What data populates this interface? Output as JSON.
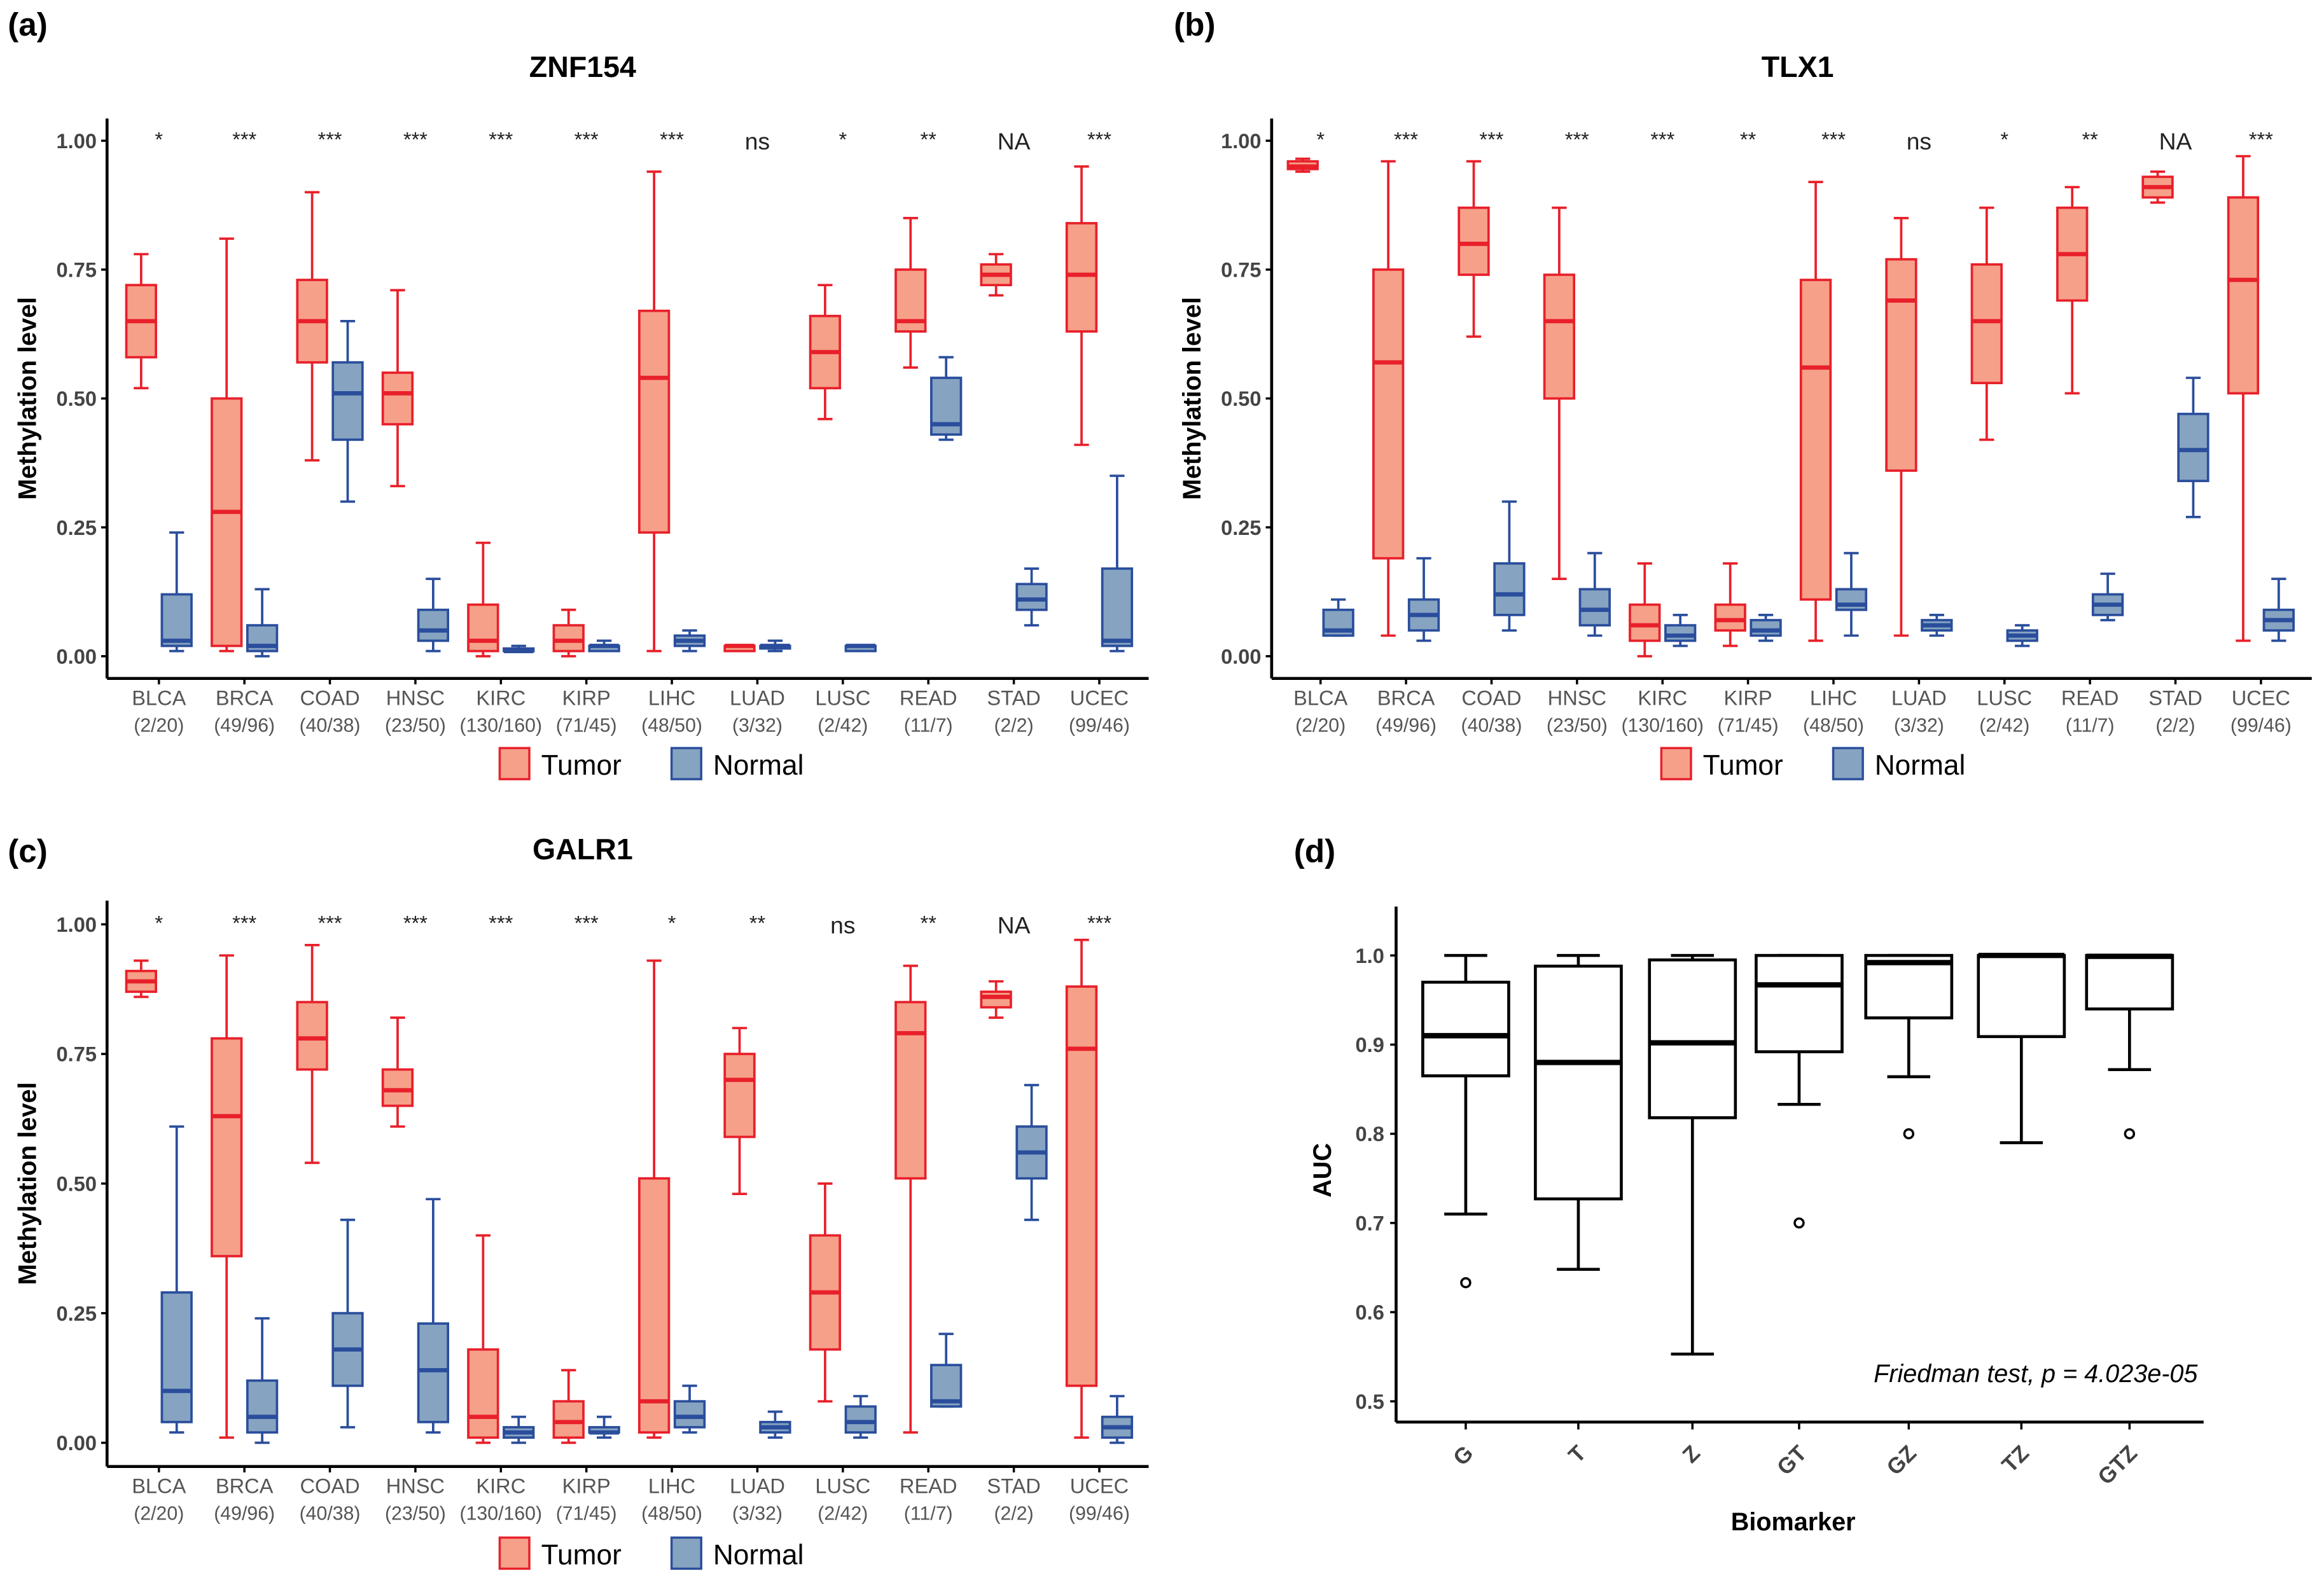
{
  "colors": {
    "tumor_stroke": "#e8202a",
    "tumor_fill": "#f6a08a",
    "normal_stroke": "#2a4e9c",
    "normal_fill": "#86a3c1",
    "auc_stroke": "#000000"
  },
  "chart_data": [
    {
      "panel_label": "(a)",
      "type": "boxplot",
      "title": "ZNF154",
      "ylabel": "Methylation level",
      "ylim": [
        0,
        1
      ],
      "yticks": [
        "0.00",
        "0.25",
        "0.50",
        "0.75",
        "1.00"
      ],
      "categories": [
        "BLCA",
        "BRCA",
        "COAD",
        "HNSC",
        "KIRC",
        "KIRP",
        "LIHC",
        "LUAD",
        "LUSC",
        "READ",
        "STAD",
        "UCEC"
      ],
      "sample_counts": [
        "(2/20)",
        "(49/96)",
        "(40/38)",
        "(23/50)",
        "(130/160)",
        "(71/45)",
        "(48/50)",
        "(3/32)",
        "(2/42)",
        "(11/7)",
        "(2/2)",
        "(99/46)"
      ],
      "significance": [
        "*",
        "***",
        "***",
        "***",
        "***",
        "***",
        "***",
        "ns",
        "*",
        "**",
        "NA",
        "***"
      ],
      "legend": [
        "Tumor",
        "Normal"
      ],
      "series": [
        {
          "name": "Tumor",
          "stats_min_q1_median_q3_max": [
            [
              0.52,
              0.58,
              0.65,
              0.72,
              0.78
            ],
            [
              0.01,
              0.02,
              0.28,
              0.5,
              0.81
            ],
            [
              0.38,
              0.57,
              0.65,
              0.73,
              0.9
            ],
            [
              0.33,
              0.45,
              0.51,
              0.55,
              0.71
            ],
            [
              0.0,
              0.01,
              0.03,
              0.1,
              0.22
            ],
            [
              0.0,
              0.01,
              0.03,
              0.06,
              0.09
            ],
            [
              0.01,
              0.24,
              0.54,
              0.67,
              0.94
            ],
            [
              0.01,
              0.01,
              0.02,
              0.02,
              0.02
            ],
            [
              0.46,
              0.52,
              0.59,
              0.66,
              0.72
            ],
            [
              0.56,
              0.63,
              0.65,
              0.75,
              0.85
            ],
            [
              0.7,
              0.72,
              0.74,
              0.76,
              0.78
            ],
            [
              0.41,
              0.63,
              0.74,
              0.84,
              0.95
            ]
          ]
        },
        {
          "name": "Normal",
          "stats_min_q1_median_q3_max": [
            [
              0.01,
              0.02,
              0.03,
              0.12,
              0.24
            ],
            [
              0.0,
              0.01,
              0.02,
              0.06,
              0.13
            ],
            [
              0.3,
              0.42,
              0.51,
              0.57,
              0.65
            ],
            [
              0.01,
              0.03,
              0.05,
              0.09,
              0.15
            ],
            [
              0.01,
              0.01,
              0.01,
              0.015,
              0.02
            ],
            [
              0.01,
              0.01,
              0.02,
              0.02,
              0.03
            ],
            [
              0.01,
              0.02,
              0.03,
              0.04,
              0.05
            ],
            [
              0.01,
              0.015,
              0.02,
              0.02,
              0.03
            ],
            [
              0.01,
              0.01,
              0.02,
              0.02,
              0.02
            ],
            [
              0.42,
              0.43,
              0.45,
              0.54,
              0.58
            ],
            [
              0.06,
              0.09,
              0.11,
              0.14,
              0.17
            ],
            [
              0.01,
              0.02,
              0.03,
              0.17,
              0.35
            ]
          ]
        }
      ]
    },
    {
      "panel_label": "(b)",
      "type": "boxplot",
      "title": "TLX1",
      "ylabel": "Methylation level",
      "ylim": [
        0,
        1
      ],
      "yticks": [
        "0.00",
        "0.25",
        "0.50",
        "0.75",
        "1.00"
      ],
      "categories": [
        "BLCA",
        "BRCA",
        "COAD",
        "HNSC",
        "KIRC",
        "KIRP",
        "LIHC",
        "LUAD",
        "LUSC",
        "READ",
        "STAD",
        "UCEC"
      ],
      "sample_counts": [
        "(2/20)",
        "(49/96)",
        "(40/38)",
        "(23/50)",
        "(130/160)",
        "(71/45)",
        "(48/50)",
        "(3/32)",
        "(2/42)",
        "(11/7)",
        "(2/2)",
        "(99/46)"
      ],
      "significance": [
        "*",
        "***",
        "***",
        "***",
        "***",
        "**",
        "***",
        "ns",
        "*",
        "**",
        "NA",
        "***"
      ],
      "legend": [
        "Tumor",
        "Normal"
      ],
      "series": [
        {
          "name": "Tumor",
          "stats_min_q1_median_q3_max": [
            [
              0.94,
              0.945,
              0.95,
              0.96,
              0.965
            ],
            [
              0.04,
              0.19,
              0.57,
              0.75,
              0.96
            ],
            [
              0.62,
              0.74,
              0.8,
              0.87,
              0.96
            ],
            [
              0.15,
              0.5,
              0.65,
              0.74,
              0.87
            ],
            [
              0.0,
              0.03,
              0.06,
              0.1,
              0.18
            ],
            [
              0.02,
              0.05,
              0.07,
              0.1,
              0.18
            ],
            [
              0.03,
              0.11,
              0.56,
              0.73,
              0.92
            ],
            [
              0.04,
              0.36,
              0.69,
              0.77,
              0.85
            ],
            [
              0.42,
              0.53,
              0.65,
              0.76,
              0.87
            ],
            [
              0.51,
              0.69,
              0.78,
              0.87,
              0.91
            ],
            [
              0.88,
              0.89,
              0.91,
              0.93,
              0.94
            ],
            [
              0.03,
              0.51,
              0.73,
              0.89,
              0.97
            ]
          ]
        },
        {
          "name": "Normal",
          "stats_min_q1_median_q3_max": [
            [
              0.04,
              0.04,
              0.05,
              0.09,
              0.11
            ],
            [
              0.03,
              0.05,
              0.08,
              0.11,
              0.19
            ],
            [
              0.05,
              0.08,
              0.12,
              0.18,
              0.3
            ],
            [
              0.04,
              0.06,
              0.09,
              0.13,
              0.2
            ],
            [
              0.02,
              0.03,
              0.04,
              0.06,
              0.08
            ],
            [
              0.03,
              0.04,
              0.05,
              0.07,
              0.08
            ],
            [
              0.04,
              0.09,
              0.1,
              0.13,
              0.2
            ],
            [
              0.04,
              0.05,
              0.06,
              0.07,
              0.08
            ],
            [
              0.02,
              0.03,
              0.04,
              0.05,
              0.06
            ],
            [
              0.07,
              0.08,
              0.1,
              0.12,
              0.16
            ],
            [
              0.27,
              0.34,
              0.4,
              0.47,
              0.54
            ],
            [
              0.03,
              0.05,
              0.07,
              0.09,
              0.15
            ]
          ]
        }
      ]
    },
    {
      "panel_label": "(c)",
      "type": "boxplot",
      "title": "GALR1",
      "ylabel": "Methylation level",
      "ylim": [
        0,
        1
      ],
      "yticks": [
        "0.00",
        "0.25",
        "0.50",
        "0.75",
        "1.00"
      ],
      "categories": [
        "BLCA",
        "BRCA",
        "COAD",
        "HNSC",
        "KIRC",
        "KIRP",
        "LIHC",
        "LUAD",
        "LUSC",
        "READ",
        "STAD",
        "UCEC"
      ],
      "sample_counts": [
        "(2/20)",
        "(49/96)",
        "(40/38)",
        "(23/50)",
        "(130/160)",
        "(71/45)",
        "(48/50)",
        "(3/32)",
        "(2/42)",
        "(11/7)",
        "(2/2)",
        "(99/46)"
      ],
      "significance": [
        "*",
        "***",
        "***",
        "***",
        "***",
        "***",
        "*",
        "**",
        "ns",
        "**",
        "NA",
        "***"
      ],
      "legend": [
        "Tumor",
        "Normal"
      ],
      "series": [
        {
          "name": "Tumor",
          "stats_min_q1_median_q3_max": [
            [
              0.86,
              0.87,
              0.89,
              0.91,
              0.93
            ],
            [
              0.01,
              0.36,
              0.63,
              0.78,
              0.94
            ],
            [
              0.54,
              0.72,
              0.78,
              0.85,
              0.96
            ],
            [
              0.61,
              0.65,
              0.68,
              0.72,
              0.82
            ],
            [
              0.0,
              0.01,
              0.05,
              0.18,
              0.4
            ],
            [
              0.0,
              0.01,
              0.04,
              0.08,
              0.14
            ],
            [
              0.01,
              0.02,
              0.08,
              0.51,
              0.93
            ],
            [
              0.48,
              0.59,
              0.7,
              0.75,
              0.8
            ],
            [
              0.08,
              0.18,
              0.29,
              0.4,
              0.5
            ],
            [
              0.02,
              0.51,
              0.79,
              0.85,
              0.92
            ],
            [
              0.82,
              0.84,
              0.86,
              0.87,
              0.89
            ],
            [
              0.01,
              0.11,
              0.76,
              0.88,
              0.97
            ]
          ]
        },
        {
          "name": "Normal",
          "stats_min_q1_median_q3_max": [
            [
              0.02,
              0.04,
              0.1,
              0.29,
              0.61
            ],
            [
              0.0,
              0.02,
              0.05,
              0.12,
              0.24
            ],
            [
              0.03,
              0.11,
              0.18,
              0.25,
              0.43
            ],
            [
              0.02,
              0.04,
              0.14,
              0.23,
              0.47
            ],
            [
              0.0,
              0.01,
              0.02,
              0.03,
              0.05
            ],
            [
              0.01,
              0.02,
              0.02,
              0.03,
              0.05
            ],
            [
              0.02,
              0.03,
              0.05,
              0.08,
              0.11
            ],
            [
              0.01,
              0.02,
              0.03,
              0.04,
              0.06
            ],
            [
              0.01,
              0.02,
              0.04,
              0.07,
              0.09
            ],
            [
              0.07,
              0.07,
              0.08,
              0.15,
              0.21
            ],
            [
              0.43,
              0.51,
              0.56,
              0.61,
              0.69
            ],
            [
              0.0,
              0.01,
              0.03,
              0.05,
              0.09
            ]
          ]
        }
      ]
    },
    {
      "panel_label": "(d)",
      "type": "boxplot",
      "title": "",
      "xlabel": "Biomarker",
      "ylabel": "AUC",
      "ylim": [
        0.5,
        1.0
      ],
      "yticks": [
        "0.5",
        "0.6",
        "0.7",
        "0.8",
        "0.9",
        "1.0"
      ],
      "categories": [
        "G",
        "T",
        "Z",
        "GT",
        "GZ",
        "TZ",
        "GTZ"
      ],
      "annotation": "Friedman test, p = 4.023e-05",
      "stats_min_q1_median_q3_max": [
        [
          0.71,
          0.865,
          0.91,
          0.97,
          1.0
        ],
        [
          0.648,
          0.727,
          0.88,
          0.988,
          1.0
        ],
        [
          0.553,
          0.818,
          0.902,
          0.995,
          1.0
        ],
        [
          0.833,
          0.892,
          0.967,
          1.0,
          1.0
        ],
        [
          0.864,
          0.93,
          0.992,
          1.0,
          1.0
        ],
        [
          0.79,
          0.909,
          1.0,
          1.0,
          1.0
        ],
        [
          0.872,
          0.94,
          0.999,
          1.0,
          1.0
        ]
      ],
      "outliers": [
        [
          0.633
        ],
        [],
        [],
        [
          0.7
        ],
        [
          0.8
        ],
        [],
        [
          0.8
        ]
      ]
    }
  ]
}
